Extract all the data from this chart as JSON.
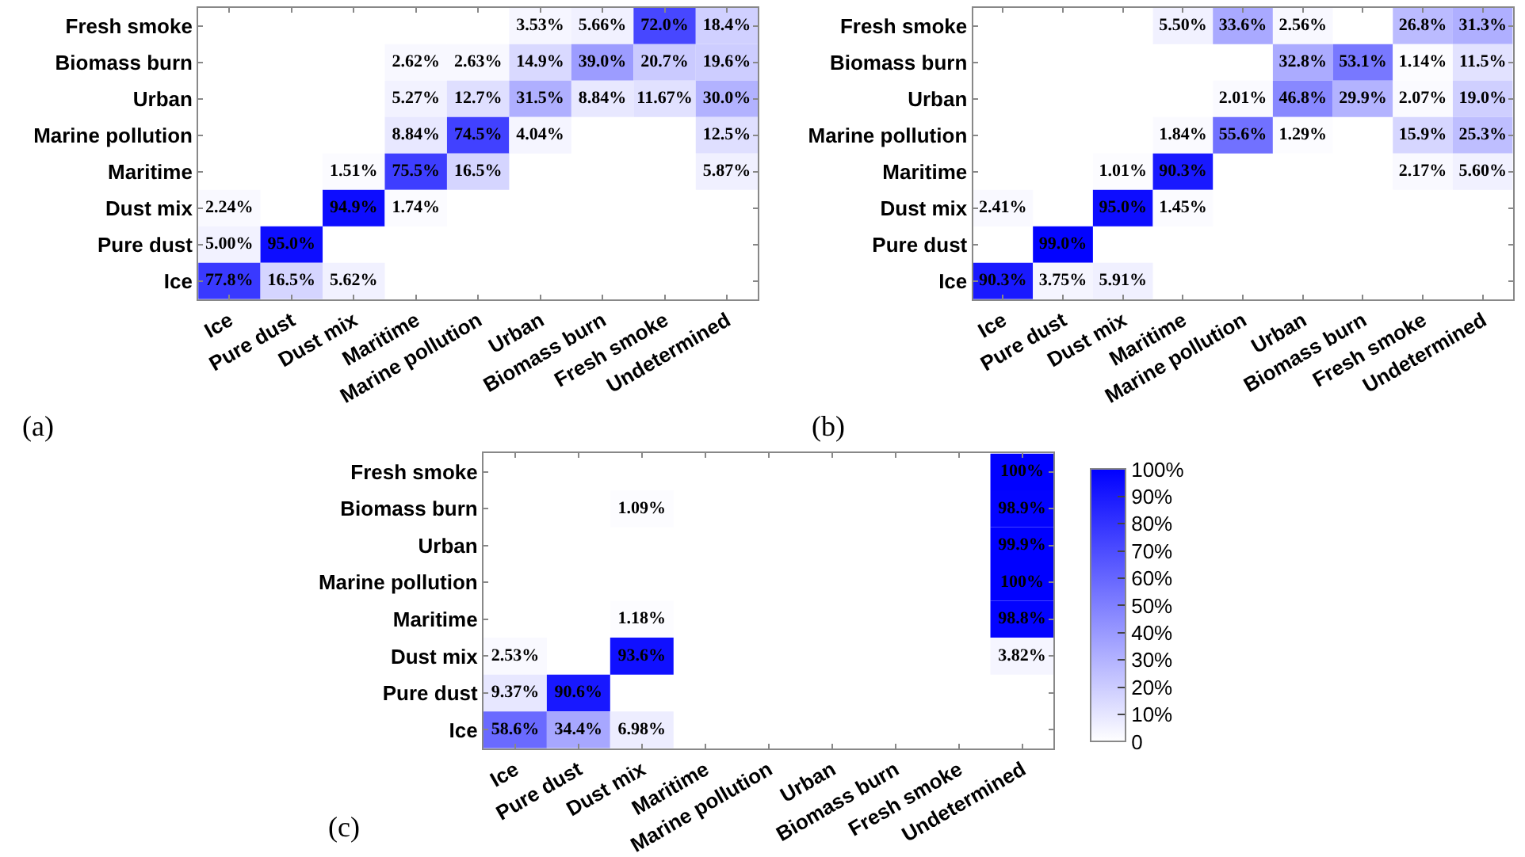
{
  "chart_data": [
    {
      "type": "heatmap",
      "annotations": [
        "(a)"
      ],
      "colors": [
        "#ffffff",
        "#0000ff"
      ],
      "categories": [
        "Ice",
        "Pure dust",
        "Dust mix",
        "Maritime",
        "Marine pollution",
        "Urban",
        "Biomass burn",
        "Fresh smoke",
        "Undetermined"
      ],
      "y_categories": [
        "Fresh smoke",
        "Biomass burn",
        "Urban",
        "Marine pollution",
        "Maritime",
        "Dust mix",
        "Pure dust",
        "Ice"
      ],
      "cells": [
        [
          null,
          null,
          null,
          null,
          null,
          3.53,
          5.66,
          72.0,
          18.4
        ],
        [
          null,
          null,
          null,
          2.62,
          2.63,
          14.9,
          39.0,
          20.7,
          19.6
        ],
        [
          null,
          null,
          null,
          5.27,
          12.7,
          31.5,
          8.84,
          11.67,
          30.0
        ],
        [
          null,
          null,
          null,
          8.84,
          74.5,
          4.04,
          null,
          null,
          12.5
        ],
        [
          null,
          null,
          1.51,
          75.5,
          16.5,
          null,
          null,
          null,
          5.87
        ],
        [
          2.24,
          null,
          94.9,
          1.74,
          null,
          null,
          null,
          null,
          null
        ],
        [
          5.0,
          95.0,
          null,
          null,
          null,
          null,
          null,
          null,
          null
        ],
        [
          77.8,
          16.5,
          5.62,
          null,
          null,
          null,
          null,
          null,
          null
        ]
      ],
      "cell_labels": [
        [
          null,
          null,
          null,
          null,
          null,
          "3.53%",
          "5.66%",
          "72.0%",
          "18.4%"
        ],
        [
          null,
          null,
          null,
          "2.62%",
          "2.63%",
          "14.9%",
          "39.0%",
          "20.7%",
          "19.6%"
        ],
        [
          null,
          null,
          null,
          "5.27%",
          "12.7%",
          "31.5%",
          "8.84%",
          "11.67%",
          "30.0%"
        ],
        [
          null,
          null,
          null,
          "8.84%",
          "74.5%",
          "4.04%",
          null,
          null,
          "12.5%"
        ],
        [
          null,
          null,
          "1.51%",
          "75.5%",
          "16.5%",
          null,
          null,
          null,
          "5.87%"
        ],
        [
          "2.24%",
          null,
          "94.9%",
          "1.74%",
          null,
          null,
          null,
          null,
          null
        ],
        [
          "5.00%",
          "95.0%",
          null,
          null,
          null,
          null,
          null,
          null,
          null
        ],
        [
          "77.8%",
          "16.5%",
          "5.62%",
          null,
          null,
          null,
          null,
          null,
          null
        ]
      ]
    },
    {
      "type": "heatmap",
      "annotations": [
        "(b)"
      ],
      "colors": [
        "#ffffff",
        "#0000ff"
      ],
      "categories": [
        "Ice",
        "Pure dust",
        "Dust mix",
        "Maritime",
        "Marine pollution",
        "Urban",
        "Biomass burn",
        "Fresh smoke",
        "Undetermined"
      ],
      "y_categories": [
        "Fresh smoke",
        "Biomass burn",
        "Urban",
        "Marine pollution",
        "Maritime",
        "Dust mix",
        "Pure dust",
        "Ice"
      ],
      "cells": [
        [
          null,
          null,
          null,
          5.5,
          33.6,
          2.56,
          null,
          26.8,
          31.3
        ],
        [
          null,
          null,
          null,
          null,
          null,
          32.8,
          53.1,
          1.14,
          11.5
        ],
        [
          null,
          null,
          null,
          null,
          2.01,
          46.8,
          29.9,
          2.07,
          19.0
        ],
        [
          null,
          null,
          null,
          1.84,
          55.6,
          1.29,
          null,
          15.9,
          25.3
        ],
        [
          null,
          null,
          1.01,
          90.3,
          null,
          null,
          null,
          2.17,
          5.6
        ],
        [
          2.41,
          null,
          95.0,
          1.45,
          null,
          null,
          null,
          null,
          null
        ],
        [
          null,
          99.0,
          null,
          null,
          null,
          null,
          null,
          null,
          null
        ],
        [
          90.3,
          3.75,
          5.91,
          null,
          null,
          null,
          null,
          null,
          null
        ]
      ],
      "cell_labels": [
        [
          null,
          null,
          null,
          "5.50%",
          "33.6%",
          "2.56%",
          null,
          "26.8%",
          "31.3%"
        ],
        [
          null,
          null,
          null,
          null,
          null,
          "32.8%",
          "53.1%",
          "1.14%",
          "11.5%"
        ],
        [
          null,
          null,
          null,
          null,
          "2.01%",
          "46.8%",
          "29.9%",
          "2.07%",
          "19.0%"
        ],
        [
          null,
          null,
          null,
          "1.84%",
          "55.6%",
          "1.29%",
          null,
          "15.9%",
          "25.3%"
        ],
        [
          null,
          null,
          "1.01%",
          "90.3%",
          null,
          null,
          null,
          "2.17%",
          "5.60%"
        ],
        [
          "2.41%",
          null,
          "95.0%",
          "1.45%",
          null,
          null,
          null,
          null,
          null
        ],
        [
          null,
          "99.0%",
          null,
          null,
          null,
          null,
          null,
          null,
          null
        ],
        [
          "90.3%",
          "3.75%",
          "5.91%",
          null,
          null,
          null,
          null,
          null,
          null
        ]
      ]
    },
    {
      "type": "heatmap",
      "annotations": [
        "(c)"
      ],
      "colors": [
        "#ffffff",
        "#0000ff"
      ],
      "clim": [
        0,
        100
      ],
      "cticks": [
        0,
        {
          "value": 10,
          "label": "10%"
        },
        {
          "value": 20,
          "label": "20%"
        },
        {
          "value": 30,
          "label": "30%"
        },
        {
          "value": 40,
          "label": "40%"
        },
        {
          "value": 50,
          "label": "50%"
        },
        {
          "value": 60,
          "label": "60%"
        },
        {
          "value": 70,
          "label": "70%"
        },
        {
          "value": 80,
          "label": "80%"
        },
        {
          "value": 90,
          "label": "90%"
        },
        {
          "value": 100,
          "label": "100%"
        }
      ],
      "categories": [
        "Ice",
        "Pure dust",
        "Dust mix",
        "Maritime",
        "Marine pollution",
        "Urban",
        "Biomass burn",
        "Fresh smoke",
        "Undetermined"
      ],
      "y_categories": [
        "Fresh smoke",
        "Biomass burn",
        "Urban",
        "Marine pollution",
        "Maritime",
        "Dust mix",
        "Pure dust",
        "Ice"
      ],
      "cells": [
        [
          null,
          null,
          null,
          null,
          null,
          null,
          null,
          null,
          100
        ],
        [
          null,
          null,
          1.09,
          null,
          null,
          null,
          null,
          null,
          98.9
        ],
        [
          null,
          null,
          null,
          null,
          null,
          null,
          null,
          null,
          99.9
        ],
        [
          null,
          null,
          null,
          null,
          null,
          null,
          null,
          null,
          100
        ],
        [
          null,
          null,
          1.18,
          null,
          null,
          null,
          null,
          null,
          98.8
        ],
        [
          2.53,
          null,
          93.6,
          null,
          null,
          null,
          null,
          null,
          3.82
        ],
        [
          9.37,
          90.6,
          null,
          null,
          null,
          null,
          null,
          null,
          null
        ],
        [
          58.6,
          34.4,
          6.98,
          null,
          null,
          null,
          null,
          null,
          null
        ]
      ],
      "cell_labels": [
        [
          null,
          null,
          null,
          null,
          null,
          null,
          null,
          null,
          "100%"
        ],
        [
          null,
          null,
          "1.09%",
          null,
          null,
          null,
          null,
          null,
          "98.9%"
        ],
        [
          null,
          null,
          null,
          null,
          null,
          null,
          null,
          null,
          "99.9%"
        ],
        [
          null,
          null,
          null,
          null,
          null,
          null,
          null,
          null,
          "100%"
        ],
        [
          null,
          null,
          "1.18%",
          null,
          null,
          null,
          null,
          null,
          "98.8%"
        ],
        [
          "2.53%",
          null,
          "93.6%",
          null,
          null,
          null,
          null,
          null,
          "3.82%"
        ],
        [
          "9.37%",
          "90.6%",
          null,
          null,
          null,
          null,
          null,
          null,
          null
        ],
        [
          "58.6%",
          "34.4%",
          "6.98%",
          null,
          null,
          null,
          null,
          null,
          null
        ]
      ]
    }
  ]
}
